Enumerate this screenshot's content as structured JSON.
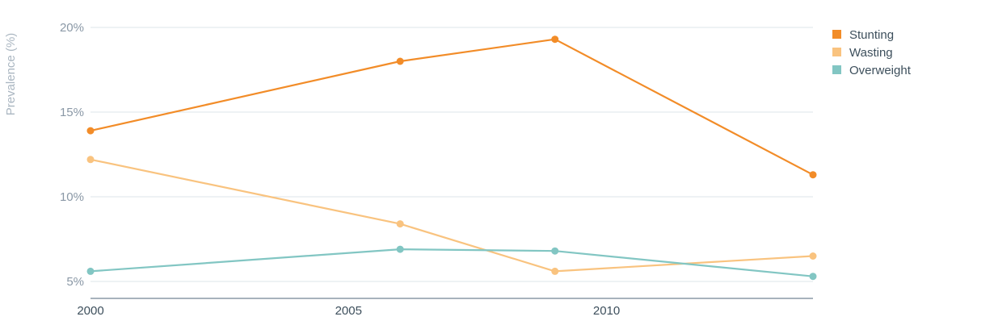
{
  "chart_data": {
    "type": "line",
    "ylabel": "Prevalence (%)",
    "xlim": [
      2000,
      2014
    ],
    "ylim": [
      4,
      20
    ],
    "y_ticks": [
      5,
      10,
      15,
      20
    ],
    "y_tick_labels": [
      "5%",
      "10%",
      "15%",
      "20%"
    ],
    "x_ticks": [
      2000,
      2005,
      2010
    ],
    "x_tick_labels": [
      "2000",
      "2005",
      "2010"
    ],
    "grid": true,
    "legend_position": "top-right",
    "series": [
      {
        "name": "Stunting",
        "color": "#f28c28",
        "points": [
          [
            2000,
            13.9
          ],
          [
            2006,
            18.0
          ],
          [
            2009,
            19.3
          ],
          [
            2014,
            11.3
          ]
        ]
      },
      {
        "name": "Wasting",
        "color": "#f9c37f",
        "points": [
          [
            2000,
            12.2
          ],
          [
            2006,
            8.4
          ],
          [
            2009,
            5.6
          ],
          [
            2014,
            6.5
          ]
        ]
      },
      {
        "name": "Overweight",
        "color": "#82c6c3",
        "points": [
          [
            2000,
            5.6
          ],
          [
            2006,
            6.9
          ],
          [
            2009,
            6.8
          ],
          [
            2014,
            5.3
          ]
        ]
      }
    ]
  }
}
